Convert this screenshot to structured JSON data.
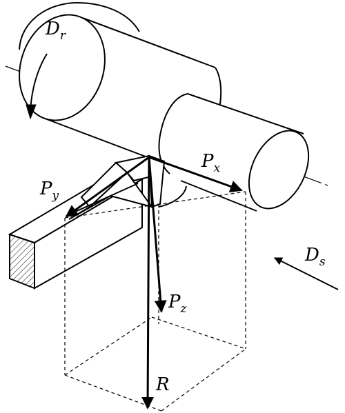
{
  "labels": {
    "dr": {
      "main": "D",
      "sub": "r"
    },
    "ds": {
      "main": "D",
      "sub": "s"
    },
    "px": {
      "main": "P",
      "sub": "x"
    },
    "py": {
      "main": "P",
      "sub": "y"
    },
    "pz": {
      "main": "P",
      "sub": "z"
    },
    "r": {
      "main": "R"
    }
  }
}
